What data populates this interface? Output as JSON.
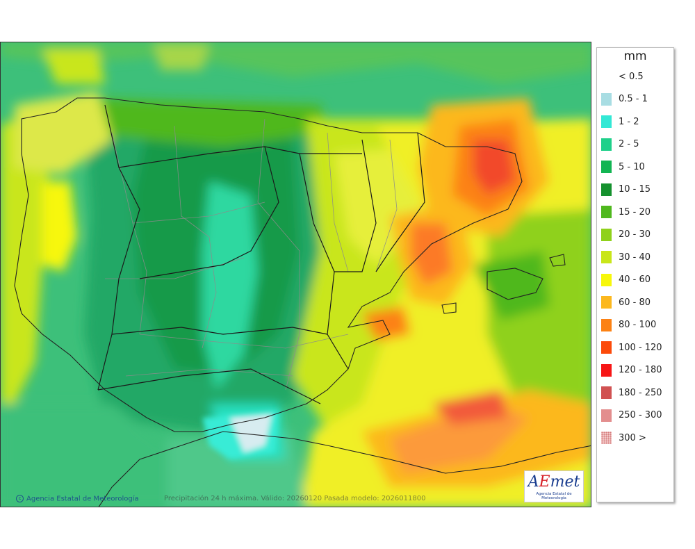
{
  "map": {
    "copyright": "Agencia Estatal de Meteorología",
    "caption": "Precipitación 24 h máxima. Válido: 20260120 Pasada modelo: 2026011800",
    "logo_text_a": "A",
    "logo_text_e": "E",
    "logo_text_rest": "met",
    "logo_sub": "Agencia Estatal de Meteorología"
  },
  "legend": {
    "unit": "mm",
    "items": [
      {
        "label": "< 0.5",
        "color": "#ffffff"
      },
      {
        "label": "0.5 - 1",
        "color": "#a8dde3"
      },
      {
        "label": "1 - 2",
        "color": "#33e8d5"
      },
      {
        "label": "2 - 5",
        "color": "#1fd08a"
      },
      {
        "label": "5 - 10",
        "color": "#12b552"
      },
      {
        "label": "10 - 15",
        "color": "#15912e"
      },
      {
        "label": "15 - 20",
        "color": "#4fb81e"
      },
      {
        "label": "20 - 30",
        "color": "#8fd11b"
      },
      {
        "label": "30 - 40",
        "color": "#c9e61a"
      },
      {
        "label": "40 - 60",
        "color": "#f7f70a"
      },
      {
        "label": "60 - 80",
        "color": "#fcb81e"
      },
      {
        "label": "80 - 100",
        "color": "#fc8214"
      },
      {
        "label": "100 - 120",
        "color": "#fc4a0a"
      },
      {
        "label": "120 - 180",
        "color": "#f71616"
      },
      {
        "label": "180 - 250",
        "color": "#d15252"
      },
      {
        "label": "250 - 300",
        "color": "#e38e8e"
      },
      {
        "label": "300 >",
        "color": "#f2c7c7"
      }
    ]
  }
}
